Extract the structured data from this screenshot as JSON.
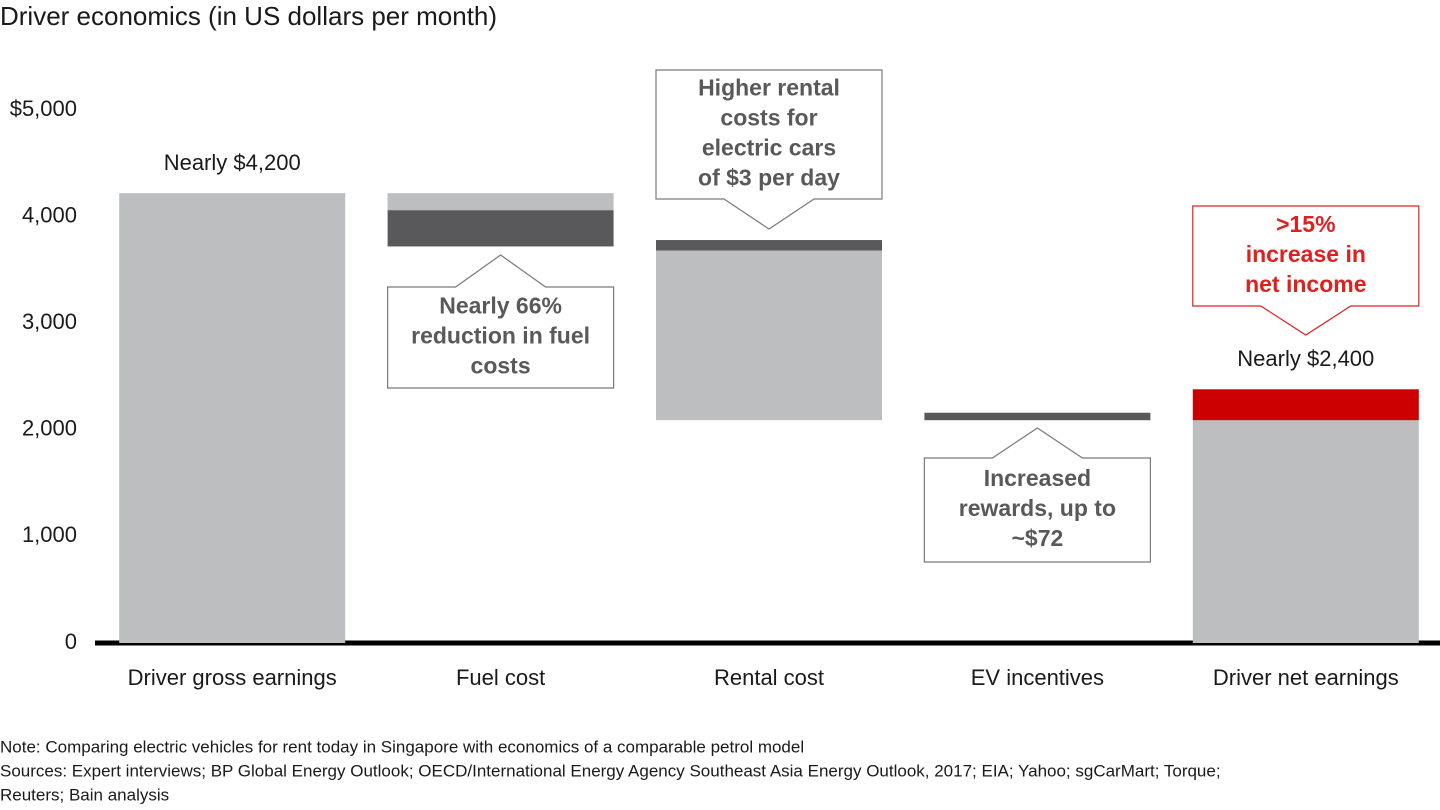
{
  "chart_data": {
    "type": "waterfall",
    "title": "Driver economics (in US dollars per month)",
    "categories": [
      "Driver gross earnings",
      "Fuel cost",
      "Rental cost",
      "EV incentives",
      "Driver net earnings"
    ],
    "segments": [
      [
        {
          "from": 0,
          "to": 4220,
          "color": "#bdbebf"
        }
      ],
      [
        {
          "from": 4060,
          "to": 4220,
          "color": "#bdbebf"
        },
        {
          "from": 3720,
          "to": 4060,
          "color": "#59595b"
        }
      ],
      [
        {
          "from": 3680,
          "to": 3780,
          "color": "#59595b"
        },
        {
          "from": 2090,
          "to": 3680,
          "color": "#bdbebf"
        }
      ],
      [
        {
          "from": 2090,
          "to": 2160,
          "color": "#59595b"
        }
      ],
      [
        {
          "from": 0,
          "to": 2090,
          "color": "#bdbebf"
        },
        {
          "from": 2090,
          "to": 2380,
          "color": "#cc0000"
        }
      ]
    ],
    "total_labels": [
      "Nearly $4,200",
      null,
      null,
      null,
      "Nearly $2,400"
    ],
    "callouts": [
      null,
      {
        "lines": [
          "Nearly 66%",
          "reduction in fuel",
          "costs"
        ],
        "color": "#59595b"
      },
      {
        "lines": [
          "Higher rental",
          "costs for",
          "electric cars",
          "of $3 per day"
        ],
        "color": "#59595b"
      },
      {
        "lines": [
          "Increased",
          "rewards, up to",
          "~$72"
        ],
        "color": "#59595b"
      },
      {
        "lines": [
          ">15%",
          "increase in",
          "net income"
        ],
        "color": "#e0201f"
      }
    ],
    "ylim": [
      0,
      5000
    ],
    "yticks": [
      0,
      {
        "value": 1000,
        "label": "1,000"
      },
      {
        "value": 2000,
        "label": "2,000"
      },
      {
        "value": 3000,
        "label": "3,000"
      },
      {
        "value": 4000,
        "label": "4,000"
      },
      {
        "value": 5000,
        "label": "$5,000"
      }
    ],
    "grid": false,
    "note": "Note: Comparing electric vehicles for rent today in Singapore with economics of a comparable petrol model",
    "sources": [
      "Sources: Expert interviews; BP Global Energy Outlook; OECD/International Energy Agency Southeast Asia Energy Outlook, 2017; EIA; Yahoo; sgCarMart; Torque;",
      "Reuters; Bain analysis"
    ]
  }
}
